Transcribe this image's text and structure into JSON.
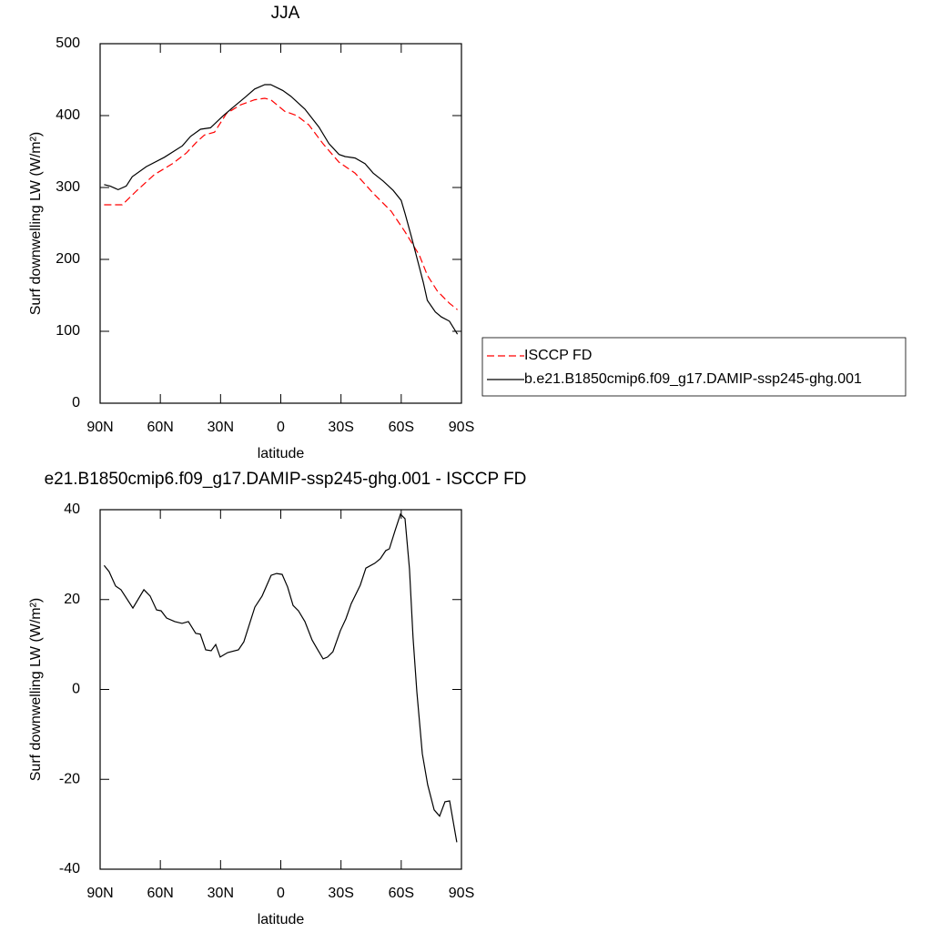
{
  "chart_data": [
    {
      "type": "line",
      "title": "JJA",
      "xlabel": "latitude",
      "ylabel": "Surf downwelling LW (W/m²)",
      "xlim": [
        90,
        -90
      ],
      "xticks": [
        {
          "value": 90,
          "label": "90N"
        },
        {
          "value": 60,
          "label": "60N"
        },
        {
          "value": 30,
          "label": "30N"
        },
        0,
        {
          "value": -30,
          "label": "30S"
        },
        {
          "value": -60,
          "label": "60S"
        },
        {
          "value": -90,
          "label": "90S"
        }
      ],
      "ylim": [
        0,
        500
      ],
      "yticks": [
        0,
        100,
        200,
        300,
        400,
        500
      ],
      "legend": "right",
      "series": [
        {
          "name": "ISCCP FD",
          "color": "#ff0000",
          "dash": true,
          "x": [
            88,
            79,
            72,
            63,
            54,
            47,
            42,
            38,
            33,
            27,
            20,
            13,
            8,
            5,
            -2,
            -8,
            -14,
            -21,
            -29,
            -37,
            -46,
            -55,
            -62,
            -69,
            -73,
            -78,
            -84,
            -88
          ],
          "values": [
            276,
            276,
            295,
            318,
            333,
            348,
            363,
            373,
            377,
            403,
            415,
            422,
            424,
            422,
            406,
            400,
            387,
            361,
            335,
            320,
            292,
            267,
            238,
            206,
            178,
            156,
            139,
            130
          ]
        },
        {
          "name": "b.e21.B1850cmip6.f09_g17.DAMIP-ssp245-ghg.001",
          "color": "#000000",
          "dash": false,
          "x": [
            88,
            85,
            81,
            77,
            74,
            67,
            58,
            49,
            45,
            40,
            35,
            29,
            24,
            18,
            13,
            8,
            5,
            -1,
            -5,
            -12,
            -19,
            -24,
            -29,
            -32,
            -37,
            -42,
            -46,
            -51,
            -56,
            -60,
            -62,
            -65,
            -68,
            -71,
            -73,
            -77,
            -80,
            -84,
            -88
          ],
          "values": [
            304,
            302,
            297,
            302,
            315,
            329,
            342,
            358,
            371,
            381,
            383,
            399,
            411,
            425,
            437,
            443,
            443,
            435,
            427,
            409,
            384,
            361,
            346,
            343,
            341,
            333,
            320,
            309,
            296,
            282,
            263,
            232,
            200,
            168,
            143,
            127,
            120,
            114,
            96
          ]
        }
      ]
    },
    {
      "type": "line",
      "title": "e21.B1850cmip6.f09_g17.DAMIP-ssp245-ghg.001 - ISCCP FD",
      "xlabel": "latitude",
      "ylabel": "Surf downwelling LW (W/m²)",
      "xlim": [
        90,
        -90
      ],
      "xticks": [
        {
          "value": 90,
          "label": "90N"
        },
        {
          "value": 60,
          "label": "60N"
        },
        {
          "value": 30,
          "label": "30N"
        },
        0,
        {
          "value": -30,
          "label": "30S"
        },
        {
          "value": -60,
          "label": "60S"
        },
        {
          "value": -90,
          "label": "90S"
        }
      ],
      "ylim": [
        -40,
        40
      ],
      "yticks": [
        -40,
        -20,
        0,
        20,
        40
      ],
      "series": [
        {
          "color": "#000000",
          "dash": false,
          "x": [
            88,
            85.5,
            82.3,
            79.6,
            73.7,
            68.2,
            65.1,
            61.9,
            59.6,
            56.9,
            52.8,
            49.2,
            46,
            42.4,
            40.1,
            37.4,
            34.7,
            32.4,
            30.2,
            26.5,
            21.1,
            18.4,
            12.9,
            9.3,
            4.8,
            2.1,
            -0.7,
            -3.4,
            -6.1,
            -8.8,
            -12,
            -15.6,
            -17.9,
            -21.1,
            -23.3,
            -26,
            -29.7,
            -32.4,
            -35.1,
            -39.6,
            -42.4,
            -46.9,
            -49.6,
            -52.3,
            -54.1,
            -56.9,
            -59.6,
            -61.9,
            -64.1,
            -65.9,
            -67.8,
            -70.5,
            -73.2,
            -76.4,
            -79.1,
            -81.8,
            -84.1,
            -87.7
          ],
          "values": [
            27.6,
            26.2,
            23,
            22.2,
            18.1,
            22.2,
            20.8,
            17.7,
            17.5,
            15.9,
            15.1,
            14.7,
            15.1,
            12.5,
            12.3,
            8.8,
            8.6,
            10,
            7.2,
            8.2,
            8.8,
            10.6,
            18.3,
            20.8,
            25.4,
            25.8,
            25.6,
            22.8,
            18.7,
            17.5,
            15.1,
            11,
            9.2,
            6.8,
            7.2,
            8.4,
            13.1,
            15.7,
            19.1,
            23.2,
            27,
            28.1,
            29.1,
            30.9,
            31.3,
            35.3,
            39,
            38,
            26.8,
            11.6,
            -0.5,
            -14.3,
            -21.2,
            -26.8,
            -28.2,
            -25,
            -24.8,
            -34
          ]
        }
      ]
    }
  ]
}
